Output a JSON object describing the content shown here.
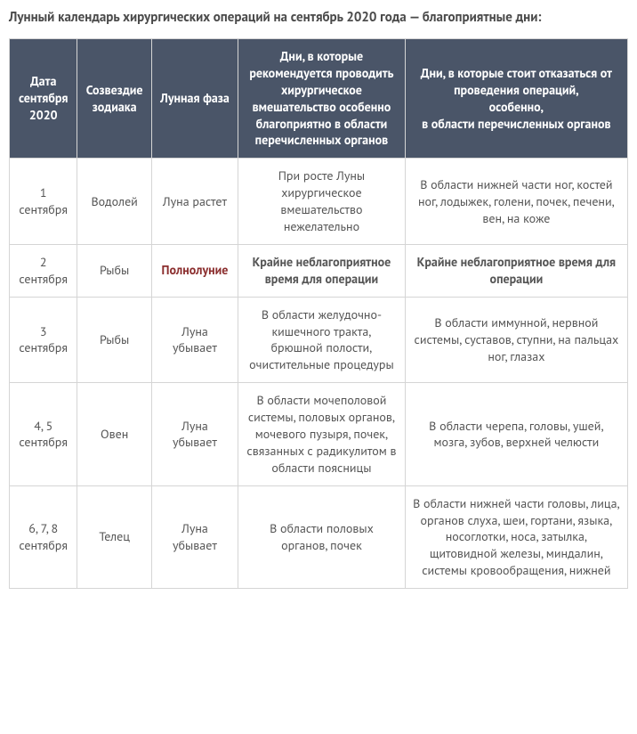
{
  "title": "Лунный календарь хирургических операций на сентябрь 2020 года — благоприятные дни:",
  "colors": {
    "header_bg": "#4a5568",
    "header_text": "#ffffff",
    "cell_text": "#555555",
    "border": "#d5d5d5",
    "emphasis_red": "#8b2e2e",
    "title_text": "#4a4a4a",
    "page_bg": "#ffffff"
  },
  "columns": [
    "Дата сентября 2020",
    "Созвездие зодиака",
    "Лунная фаза",
    "Дни, в которые рекомендуется проводить хирургическое вмешательство особенно благоприятно в области перечисленных органов",
    "Дни, в которые стоит отказаться от проведения операций,\nособенно,\nв области перечисленных органов"
  ],
  "column_widths_pct": [
    11,
    12,
    14,
    27,
    36
  ],
  "rows": [
    {
      "date": "1 сентября",
      "zodiac": "Водолей",
      "phase": "Луна растет",
      "good": "При росте Луны хирургическое вмешательство нежелательно",
      "bad": "В области нижней части ног, костей ног, лодыжек, голени, почек, печени, вен, на коже",
      "phase_style": "normal",
      "good_style": "normal",
      "bad_style": "normal"
    },
    {
      "date": "2 сентября",
      "zodiac": "Рыбы",
      "phase": "Полнолуние",
      "good": "Крайне неблагоприятное время для операции",
      "bad": "Крайне неблагоприятное время для\nоперации",
      "phase_style": "red",
      "good_style": "bold",
      "bad_style": "bold"
    },
    {
      "date": "3 сентября",
      "zodiac": "Рыбы",
      "phase": "Луна убывает",
      "good": "В области желудочно-кишечного тракта, брюшной полости, очистительные процедуры",
      "bad": "В области иммунной, нервной системы, суставов, ступни, на пальцах ног, глазах",
      "phase_style": "normal",
      "good_style": "normal",
      "bad_style": "normal"
    },
    {
      "date": "4, 5 сентября",
      "zodiac": "Овен",
      "phase": "Луна убывает",
      "good": "В области мочеполовой системы, половых органов, мочевого пузыря, почек, связанных с радикулитом в области поясницы",
      "bad": "В области черепа, головы, ушей, мозга, зубов, верхней челюсти",
      "phase_style": "normal",
      "good_style": "normal",
      "bad_style": "normal"
    },
    {
      "date": "6, 7, 8 сентября",
      "zodiac": "Телец",
      "phase": "Луна убывает",
      "good": "В области половых органов, почек",
      "bad": "В области нижней части головы, лица, органов слуха, шеи, гортани, языка, носоглотки, носа, затылка, щитовидной железы, миндалин, системы кровообращения, нижней",
      "phase_style": "normal",
      "good_style": "normal",
      "bad_style": "normal"
    }
  ]
}
